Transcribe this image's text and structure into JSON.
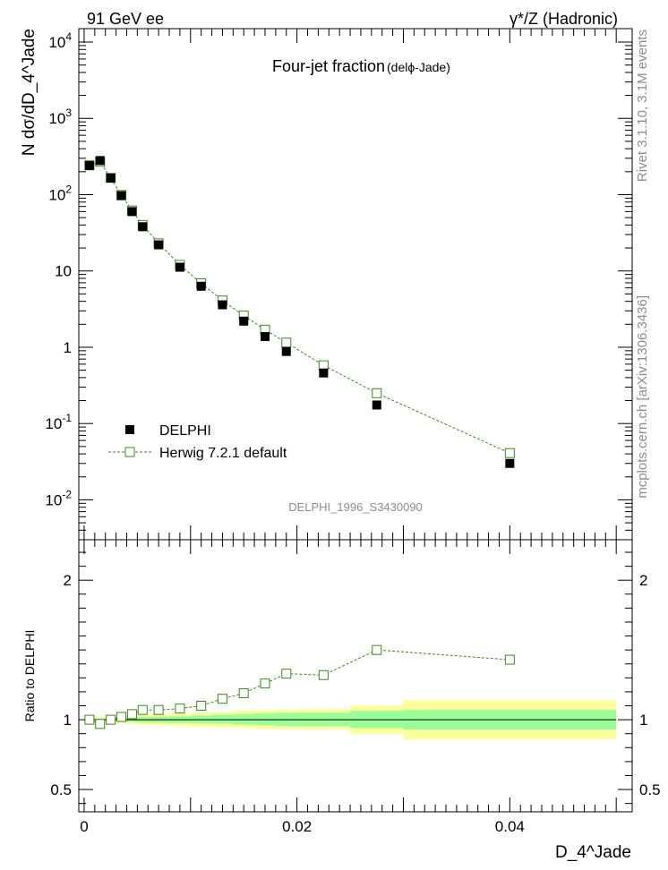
{
  "header": {
    "left": "91 GeV ee",
    "right": "γ*/Z (Hadronic)"
  },
  "side_labels": {
    "rivet": "Rivet 3.1.10, 3.1M events",
    "mcplots": "mcplots.cern.ch [arXiv:1306.3436]"
  },
  "chart_data": [
    {
      "type": "scatter",
      "panel": "main",
      "title": "Four-jet fraction",
      "subtitle": "(delϕ-Jade)",
      "ylabel": "N dσ/dD_4^Jade",
      "yscale": "log",
      "ylim": [
        0.003,
        15000
      ],
      "xlim": [
        -0.0005,
        0.0515
      ],
      "y_tick_labels": [
        "10^-2",
        "10^-1",
        "1",
        "10",
        "10^2",
        "10^3",
        "10^4"
      ],
      "watermark": "DELPHI_1996_S3430090",
      "legend": {
        "placement": "bottom-left",
        "entries": [
          "DELPHI",
          "Herwig 7.2.1 default"
        ]
      },
      "series": [
        {
          "name": "DELPHI",
          "marker": "filled-square",
          "color": "#000000",
          "x": [
            0.0005,
            0.0015,
            0.0025,
            0.0035,
            0.0045,
            0.0055,
            0.007,
            0.009,
            0.011,
            0.013,
            0.015,
            0.017,
            0.019,
            0.0225,
            0.0275,
            0.04
          ],
          "y": [
            240,
            280,
            165,
            97,
            60,
            38,
            22,
            11.2,
            6.3,
            3.6,
            2.2,
            1.38,
            0.88,
            0.46,
            0.175,
            0.03
          ]
        },
        {
          "name": "Herwig 7.2.1 default",
          "marker": "open-square",
          "line": "dashed",
          "color": "#3a8a1a",
          "x": [
            0.0005,
            0.0015,
            0.0025,
            0.0035,
            0.0045,
            0.0055,
            0.007,
            0.009,
            0.011,
            0.013,
            0.015,
            0.017,
            0.019,
            0.0225,
            0.0275,
            0.04
          ],
          "y": [
            243,
            270,
            166,
            99,
            62,
            40,
            23,
            12,
            6.9,
            4.1,
            2.6,
            1.7,
            1.15,
            0.58,
            0.25,
            0.041
          ]
        }
      ]
    },
    {
      "type": "scatter",
      "panel": "ratio",
      "ylabel": "Ratio to DELPHI",
      "xlabel": "D_4^Jade",
      "ylim": [
        0.34,
        2.29
      ],
      "xlim": [
        -0.0005,
        0.0515
      ],
      "x_tick_labels": [
        "0",
        "0.02",
        "0.04"
      ],
      "y_tick_labels": [
        "0.5",
        "1",
        "2"
      ],
      "bands": [
        {
          "x": [
            0.0,
            0.001,
            0.002,
            0.003,
            0.004,
            0.005,
            0.006,
            0.008,
            0.01,
            0.012,
            0.014,
            0.016,
            0.018,
            0.02,
            0.025,
            0.03
          ],
          "x_end": 0.05,
          "yellow_lo": [
            0.985,
            0.985,
            0.98,
            0.975,
            0.97,
            0.965,
            0.96,
            0.955,
            0.95,
            0.945,
            0.94,
            0.935,
            0.93,
            0.93,
            0.9,
            0.86
          ],
          "yellow_hi": [
            1.015,
            1.015,
            1.02,
            1.025,
            1.03,
            1.035,
            1.04,
            1.045,
            1.05,
            1.055,
            1.065,
            1.07,
            1.07,
            1.075,
            1.1,
            1.14
          ],
          "green_lo": [
            0.992,
            0.992,
            0.99,
            0.988,
            0.985,
            0.982,
            0.98,
            0.977,
            0.975,
            0.972,
            0.965,
            0.96,
            0.955,
            0.955,
            0.94,
            0.93
          ],
          "green_hi": [
            1.008,
            1.008,
            1.01,
            1.012,
            1.015,
            1.018,
            1.02,
            1.025,
            1.03,
            1.035,
            1.04,
            1.045,
            1.05,
            1.05,
            1.065,
            1.07
          ]
        }
      ],
      "series": [
        {
          "name": "Herwig 7.2.1 default",
          "marker": "open-square",
          "line": "dashed",
          "color": "#3a8a1a",
          "x": [
            0.0005,
            0.0015,
            0.0025,
            0.0035,
            0.0045,
            0.0055,
            0.007,
            0.009,
            0.011,
            0.013,
            0.015,
            0.017,
            0.019,
            0.0225,
            0.0275,
            0.04
          ],
          "y": [
            1.0,
            0.97,
            1.0,
            1.02,
            1.04,
            1.07,
            1.07,
            1.08,
            1.1,
            1.15,
            1.19,
            1.26,
            1.33,
            1.32,
            1.5,
            1.43
          ]
        }
      ]
    }
  ]
}
